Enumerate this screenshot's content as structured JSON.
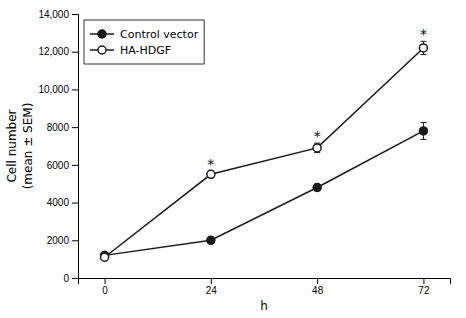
{
  "chart_data": {
    "type": "line",
    "xlabel": "h",
    "ylabel": "Cell number\n(mean ± SEM)",
    "x": [
      0,
      24,
      48,
      72
    ],
    "series": [
      {
        "name": "Control vector",
        "color": "#1a1a1a",
        "marker": "circle",
        "line_style": "solid",
        "values": [
          1200,
          2000,
          4800,
          7800
        ],
        "errors": [
          80,
          120,
          180,
          450
        ]
      },
      {
        "name": "HA-HDGF",
        "color": "#1a1a1a",
        "marker": "circle-open",
        "line_style": "solid",
        "values": [
          1100,
          5500,
          6900,
          12200
        ],
        "errors": [
          80,
          180,
          250,
          350
        ]
      }
    ],
    "annotations": [
      {
        "text": "*",
        "x": 24,
        "y": 5800
      },
      {
        "text": "*",
        "x": 48,
        "y": 7250
      },
      {
        "text": "*",
        "x": 72,
        "y": 12680
      }
    ],
    "xlim": [
      -6,
      78
    ],
    "xticks": [
      0,
      24,
      48,
      72
    ],
    "ylim": [
      0,
      14000
    ],
    "yticks": [
      0,
      2000,
      4000,
      6000,
      8000,
      {
        "value": 10000,
        "label": "10,000"
      },
      {
        "value": 12000,
        "label": "12,000"
      },
      {
        "value": 14000,
        "label": "14,000"
      }
    ],
    "grid": false,
    "legend": "upper left"
  }
}
